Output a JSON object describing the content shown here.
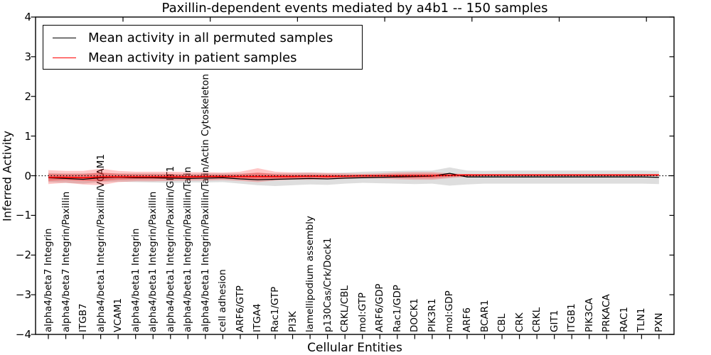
{
  "chart_data": {
    "type": "line",
    "title": "Paxillin-dependent events mediated by a4b1 -- 150 samples",
    "xlabel": "Cellular Entities",
    "ylabel": "Inferred Activity",
    "ylim": [
      -4,
      4
    ],
    "ytick_values": [
      4,
      3,
      2,
      1,
      0,
      -1,
      -2,
      -3,
      -4
    ],
    "ytick_labels": [
      "4",
      "3",
      "2",
      "1",
      "0",
      "−1",
      "−2",
      "−3",
      "−4"
    ],
    "grid": false,
    "legend_position": "upper left",
    "categories": [
      "alpha4/beta7 Integrin",
      "alpha4/beta7 Integrin/Paxillin",
      "ITGB7",
      "alpha4/beta1 Integrin/Paxillin/VCAM1",
      "VCAM1",
      "alpha4/beta1 Integrin",
      "alpha4/beta1 Integrin/Paxillin",
      "alpha4/beta1 Integrin/Paxillin/GIT1",
      "alpha4/beta1 Integrin/Paxillin/Talin",
      "alpha4/beta1 Integrin/Paxillin/Talin/Actin Cytoskeleton",
      "cell adhesion",
      "ARF6/GTP",
      "ITGA4",
      "Rac1/GTP",
      "PI3K",
      "lamellipodium assembly",
      "p130Cas/Crk/Dock1",
      "CRKL/CBL",
      "mol:GTP",
      "ARF6/GDP",
      "Rac1/GDP",
      "DOCK1",
      "PIK3R1",
      "mol:GDP",
      "ARF6",
      "BCAR1",
      "CBL",
      "CRK",
      "CRKL",
      "GIT1",
      "ITGB1",
      "PIK3CA",
      "PRKACA",
      "RAC1",
      "TLN1",
      "PXN"
    ],
    "series": [
      {
        "name": "Mean activity in all permuted samples",
        "color": "#000000",
        "line_width": 1.3,
        "values": [
          -0.05,
          -0.07,
          -0.09,
          -0.05,
          -0.04,
          -0.05,
          -0.05,
          -0.06,
          -0.07,
          -0.06,
          -0.05,
          -0.08,
          -0.1,
          -0.09,
          -0.08,
          -0.07,
          -0.08,
          -0.06,
          -0.05,
          -0.04,
          -0.03,
          -0.02,
          -0.01,
          0.06,
          -0.03,
          -0.03,
          -0.03,
          -0.03,
          -0.03,
          -0.03,
          -0.03,
          -0.03,
          -0.03,
          -0.03,
          -0.03,
          -0.04
        ]
      },
      {
        "name": "Mean activity in patient samples",
        "color": "#ff0000",
        "line_width": 1.7,
        "values": [
          -0.04,
          -0.04,
          -0.05,
          -0.03,
          -0.03,
          -0.03,
          -0.03,
          -0.03,
          -0.03,
          -0.02,
          -0.02,
          -0.02,
          -0.02,
          -0.02,
          -0.02,
          -0.01,
          -0.02,
          -0.01,
          0.0,
          0.0,
          0.0,
          0.0,
          0.0,
          0.01,
          0.02,
          0.02,
          0.02,
          0.02,
          0.02,
          0.02,
          0.02,
          0.02,
          0.02,
          0.02,
          0.02,
          0.02
        ]
      }
    ],
    "bands": [
      {
        "name": "permuted-samples-spread",
        "color": "#888888",
        "opacity": 0.28,
        "top": [
          0.07,
          0.06,
          0.06,
          0.07,
          0.06,
          0.06,
          0.06,
          0.05,
          0.05,
          0.06,
          0.06,
          0.06,
          0.07,
          0.06,
          0.07,
          0.08,
          0.07,
          0.08,
          0.1,
          0.11,
          0.12,
          0.13,
          0.13,
          0.21,
          0.13,
          0.12,
          0.13,
          0.13,
          0.13,
          0.13,
          0.13,
          0.13,
          0.13,
          0.13,
          0.13,
          0.12
        ],
        "bottom": [
          -0.16,
          -0.18,
          -0.2,
          -0.16,
          -0.15,
          -0.16,
          -0.17,
          -0.18,
          -0.17,
          -0.17,
          -0.16,
          -0.2,
          -0.24,
          -0.26,
          -0.24,
          -0.22,
          -0.23,
          -0.2,
          -0.18,
          -0.19,
          -0.2,
          -0.21,
          -0.2,
          -0.25,
          -0.22,
          -0.2,
          -0.2,
          -0.2,
          -0.2,
          -0.2,
          -0.2,
          -0.2,
          -0.2,
          -0.2,
          -0.2,
          -0.21
        ]
      },
      {
        "name": "patient-samples-spread-outer",
        "color": "#ff0000",
        "opacity": 0.22,
        "top": [
          0.14,
          0.12,
          0.12,
          0.18,
          0.12,
          0.1,
          0.1,
          0.1,
          0.09,
          0.09,
          0.08,
          0.1,
          0.19,
          0.1,
          0.08,
          0.08,
          0.07,
          0.06,
          0.05,
          0.06,
          0.08,
          0.09,
          0.09,
          0.06,
          0.04,
          0.03,
          0.03,
          0.03,
          0.03,
          0.03,
          0.03,
          0.03,
          0.03,
          0.03,
          0.03,
          0.03
        ],
        "bottom": [
          -0.21,
          -0.18,
          -0.22,
          -0.24,
          -0.16,
          -0.14,
          -0.14,
          -0.13,
          -0.12,
          -0.12,
          -0.11,
          -0.13,
          -0.16,
          -0.12,
          -0.1,
          -0.1,
          -0.09,
          -0.08,
          -0.06,
          -0.07,
          -0.09,
          -0.1,
          -0.1,
          -0.06,
          -0.03,
          -0.01,
          -0.01,
          -0.01,
          -0.01,
          -0.01,
          -0.01,
          -0.01,
          -0.01,
          -0.01,
          -0.01,
          -0.01
        ]
      },
      {
        "name": "patient-samples-spread-inner",
        "color": "#ff0000",
        "opacity": 0.28,
        "top": [
          0.05,
          0.04,
          0.04,
          0.08,
          0.05,
          0.04,
          0.04,
          0.04,
          0.03,
          0.03,
          0.03,
          0.04,
          0.08,
          0.04,
          0.03,
          0.03,
          0.03,
          0.02,
          0.02,
          0.03,
          0.04,
          0.05,
          0.05,
          0.04,
          0.03,
          0.03,
          0.03,
          0.03,
          0.03,
          0.03,
          0.03,
          0.03,
          0.03,
          0.03,
          0.03,
          0.03
        ],
        "bottom": [
          -0.13,
          -0.11,
          -0.13,
          -0.14,
          -0.1,
          -0.09,
          -0.09,
          -0.08,
          -0.08,
          -0.07,
          -0.07,
          -0.08,
          -0.1,
          -0.08,
          -0.07,
          -0.06,
          -0.06,
          -0.05,
          -0.04,
          -0.04,
          -0.05,
          -0.06,
          -0.06,
          -0.03,
          -0.01,
          0.0,
          0.0,
          0.0,
          0.0,
          0.0,
          0.0,
          0.0,
          0.0,
          0.0,
          0.0,
          0.0
        ]
      }
    ],
    "zero_line": {
      "value": 0,
      "color": "#000000",
      "style": "dotted"
    }
  }
}
